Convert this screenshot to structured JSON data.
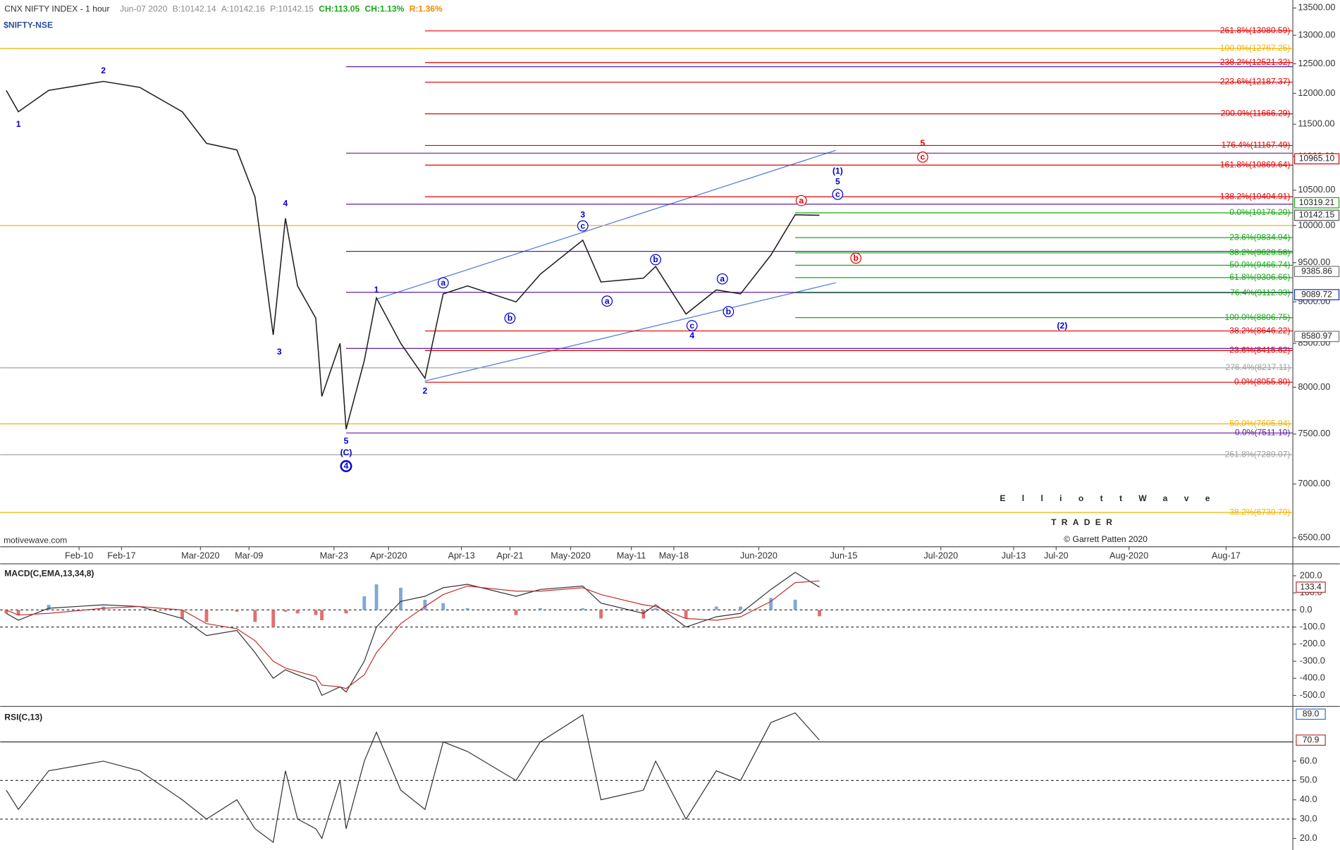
{
  "chart_data": [
    {
      "type": "line",
      "title": "CNX NIFTY INDEX - 1 hour",
      "subtitle": "$NIFTY-NSE",
      "header": [
        {
          "text": "Jun-07 2020",
          "color": "#8a8a8a"
        },
        {
          "text": "B:10142.14",
          "color": "#8a8a8a"
        },
        {
          "text": "A:10142.16",
          "color": "#8a8a8a"
        },
        {
          "text": "P:10142.15",
          "color": "#8a8a8a"
        },
        {
          "text": "CH:113.05",
          "color": "#18a818"
        },
        {
          "text": "CH:1.13%",
          "color": "#18a818"
        },
        {
          "text": "R:1.36%",
          "color": "#f08c00"
        }
      ],
      "log_scale": true,
      "color": "#222222",
      "xlim": [
        "2020-01-28",
        "2020-08-28"
      ],
      "ylim": [
        6420,
        13650
      ],
      "x": [
        "2020-01-29",
        "2020-01-31",
        "2020-02-05",
        "2020-02-14",
        "2020-02-20",
        "2020-02-27",
        "2020-03-02",
        "2020-03-07",
        "2020-03-10",
        "2020-03-13",
        "2020-03-15",
        "2020-03-17",
        "2020-03-20",
        "2020-03-21",
        "2020-03-24",
        "2020-03-25",
        "2020-03-28",
        "2020-03-30",
        "2020-04-03",
        "2020-04-07",
        "2020-04-10",
        "2020-04-14",
        "2020-04-22",
        "2020-04-26",
        "2020-05-03",
        "2020-05-06",
        "2020-05-13",
        "2020-05-15",
        "2020-05-20",
        "2020-05-25",
        "2020-05-29",
        "2020-06-03",
        "2020-06-07",
        "2020-06-11"
      ],
      "values": [
        12050,
        11700,
        12050,
        12200,
        12100,
        11700,
        11200,
        11100,
        10400,
        8600,
        10100,
        9200,
        8800,
        7900,
        8500,
        7550,
        8300,
        9050,
        8500,
        8100,
        9100,
        9200,
        9000,
        9350,
        9800,
        9250,
        9300,
        9450,
        8850,
        9150,
        9100,
        9600,
        10150,
        10142.15
      ],
      "xticks": [
        {
          "value": "2020-02-10",
          "label": "Feb-10"
        },
        {
          "value": "2020-02-17",
          "label": "Feb-17"
        },
        {
          "value": "2020-03-01",
          "label": "Mar-2020"
        },
        {
          "value": "2020-03-09",
          "label": "Mar-09"
        },
        {
          "value": "2020-03-23",
          "label": "Mar-23"
        },
        {
          "value": "2020-04-01",
          "label": "Apr-2020"
        },
        {
          "value": "2020-04-13",
          "label": "Apr-13"
        },
        {
          "value": "2020-04-21",
          "label": "Apr-21"
        },
        {
          "value": "2020-05-01",
          "label": "May-2020"
        },
        {
          "value": "2020-05-11",
          "label": "May-11"
        },
        {
          "value": "2020-05-18",
          "label": "May-18"
        },
        {
          "value": "2020-06-01",
          "label": "Jun-2020"
        },
        {
          "value": "2020-06-15",
          "label": "Jun-15"
        },
        {
          "value": "2020-07-01",
          "label": "Jul-2020"
        },
        {
          "value": "2020-07-13",
          "label": "Jul-13"
        },
        {
          "value": "2020-07-20",
          "label": "Jul-20"
        },
        {
          "value": "2020-08-01",
          "label": "Aug-2020"
        },
        {
          "value": "2020-08-17",
          "label": "Aug-17"
        }
      ],
      "yticks": [
        {
          "value": 13500,
          "label": "13500.00"
        },
        {
          "value": 13000,
          "label": "13000.00"
        },
        {
          "value": 12500,
          "label": "12500.00"
        },
        {
          "value": 12000,
          "label": "12000.00"
        },
        {
          "value": 11500,
          "label": "11500.00"
        },
        {
          "value": 11000,
          "label": "11000.00"
        },
        {
          "value": 10500,
          "label": "10500.00"
        },
        {
          "value": 10000,
          "label": "10000.00"
        },
        {
          "value": 9500,
          "label": "9500.00"
        },
        {
          "value": 9000,
          "label": "9000.00"
        },
        {
          "value": 8500,
          "label": "8500.00"
        },
        {
          "value": 8000,
          "label": "8000.00"
        },
        {
          "value": 7500,
          "label": "7500.00"
        },
        {
          "value": 7000,
          "label": "7000.00"
        },
        {
          "value": 6500,
          "label": "6500.00"
        }
      ],
      "levels": [
        {
          "label": "261.8%(13080.59)",
          "value": 13080.59,
          "color": "#e00000",
          "from": "2020-04-07"
        },
        {
          "label": "100.0%(12767.25)",
          "value": 12767.25,
          "color": "#f0b400",
          "from": "2020-01-28"
        },
        {
          "label": "238.2%(12521.32)",
          "value": 12521.32,
          "color": "#e00000",
          "from": "2020-04-07"
        },
        {
          "value": 12450,
          "color": "#6020a0",
          "from": "2020-03-25"
        },
        {
          "label": "223.6%(12187.37)",
          "value": 12187.37,
          "color": "#e00000",
          "from": "2020-04-07"
        },
        {
          "label": "200.0%(11666.29)",
          "value": 11666.29,
          "color": "#e00000",
          "from": "2020-04-07"
        },
        {
          "label": "176.4%(11167.49)",
          "value": 11167.49,
          "color": "#e00000",
          "from": "2020-04-07"
        },
        {
          "value": 11050,
          "color": "#6020a0",
          "from": "2020-03-25"
        },
        {
          "label": "161.8%(10869.64)",
          "value": 10869.64,
          "color": "#e00000",
          "from": "2020-04-07"
        },
        {
          "label": "138.2%(10404.91)",
          "value": 10404.91,
          "color": "#e00000",
          "from": "2020-04-07"
        },
        {
          "value": 10300,
          "color": "#6020a0",
          "from": "2020-03-25"
        },
        {
          "label": "0.0%(10176.20)",
          "value": 10176.2,
          "color": "#18a818",
          "from": "2020-06-07"
        },
        {
          "value": 10000,
          "color": "#f0b400",
          "from": "2020-01-28"
        },
        {
          "label": "23.6%(9834.94)",
          "value": 9834.94,
          "color": "#18a818",
          "from": "2020-06-07"
        },
        {
          "value": 9650,
          "color": "#6020a0",
          "from": "2020-03-25"
        },
        {
          "label": "38.2%(9629.58)",
          "value": 9629.58,
          "color": "#18a818",
          "from": "2020-06-07"
        },
        {
          "label": "50.0%(9466.74)",
          "value": 9466.74,
          "color": "#18a818",
          "from": "2020-06-07"
        },
        {
          "label": "61.8%(9306.66)",
          "value": 9306.66,
          "color": "#18a818",
          "from": "2020-06-07"
        },
        {
          "value": 9120,
          "color": "#6020a0",
          "from": "2020-03-25"
        },
        {
          "label": "76.4%(9112.33)",
          "value": 9112.33,
          "color": "#18a818",
          "from": "2020-06-07"
        },
        {
          "label": "100.0%(8806.75)",
          "value": 8806.75,
          "color": "#18a818",
          "from": "2020-06-07"
        },
        {
          "label": "38.2%(8646.22)",
          "value": 8646.22,
          "color": "#e00000",
          "from": "2020-04-07"
        },
        {
          "value": 8440,
          "color": "#6020a0",
          "from": "2020-03-25"
        },
        {
          "label": "23.6%(8415.62)",
          "value": 8415.62,
          "color": "#e00000",
          "from": "2020-04-07"
        },
        {
          "label": "276.4%(8217.11)",
          "value": 8217.11,
          "color": "#a0a0a0",
          "from": "2020-01-28"
        },
        {
          "label": "0.0%(8055.80)",
          "value": 8055.8,
          "color": "#e00000",
          "from": "2020-04-07"
        },
        {
          "label": "50.0%(7605.94)",
          "value": 7605.94,
          "color": "#f0b400",
          "from": "2020-01-28"
        },
        {
          "label": "0.0%(7511.10)",
          "value": 7511.1,
          "color": "#6020a0",
          "from": "2020-03-25"
        },
        {
          "label": "261.8%(7289.07)",
          "value": 7289.07,
          "color": "#a0a0a0",
          "from": "2020-01-28"
        },
        {
          "label": "38.2%(6730.79)",
          "value": 6730.79,
          "color": "#f0b400",
          "from": "2020-01-28"
        }
      ],
      "price_tags": [
        {
          "label": "10965.10",
          "value": 10965.1,
          "color": "#e00000"
        },
        {
          "label": "10319.21",
          "value": 10319.21,
          "color": "#18a818"
        },
        {
          "label": "10142.15",
          "value": 10142.15,
          "color": "#555555"
        },
        {
          "label": "9385.86",
          "value": 9385.86,
          "color": "#777777"
        },
        {
          "label": "9089.72",
          "value": 9089.72,
          "color": "#1030c0"
        },
        {
          "label": "8580.97",
          "value": 8580.97,
          "color": "#777777"
        }
      ],
      "annotations": [
        {
          "text": "1",
          "x": "2020-01-31",
          "y": 11500,
          "color": "#0000cc",
          "circle": false
        },
        {
          "text": "2",
          "x": "2020-02-14",
          "y": 12385,
          "color": "#0000cc",
          "circle": false
        },
        {
          "text": "3",
          "x": "2020-03-14",
          "y": 8400,
          "color": "#0000cc",
          "circle": false
        },
        {
          "text": "4",
          "x": "2020-03-15",
          "y": 10310,
          "color": "#0000cc",
          "circle": false
        },
        {
          "text": "5",
          "x": "2020-03-25",
          "y": 7430,
          "color": "#0000cc",
          "circle": false
        },
        {
          "text": "(C)",
          "x": "2020-03-25",
          "y": 7310,
          "color": "#0000cc",
          "circle": false
        },
        {
          "text": "4",
          "x": "2020-03-25",
          "y": 7175,
          "color": "#0000cc",
          "circle": true
        },
        {
          "text": "1",
          "x": "2020-03-30",
          "y": 9150,
          "color": "#0000cc",
          "circle": false
        },
        {
          "text": "2",
          "x": "2020-04-07",
          "y": 7960,
          "color": "#0000cc",
          "circle": false
        },
        {
          "text": "a",
          "x": "2020-04-10",
          "y": 9240,
          "color": "#0000cc",
          "circle": true
        },
        {
          "text": "b",
          "x": "2020-04-21",
          "y": 8800,
          "color": "#0000cc",
          "circle": true
        },
        {
          "text": "3",
          "x": "2020-05-03",
          "y": 10150,
          "color": "#0000cc",
          "circle": false
        },
        {
          "text": "c",
          "x": "2020-05-03",
          "y": 9995,
          "color": "#0000cc",
          "circle": true
        },
        {
          "text": "a",
          "x": "2020-05-07",
          "y": 9010,
          "color": "#0000cc",
          "circle": true
        },
        {
          "text": "b",
          "x": "2020-05-15",
          "y": 9540,
          "color": "#0000cc",
          "circle": true
        },
        {
          "text": "c",
          "x": "2020-05-21",
          "y": 8710,
          "color": "#0000cc",
          "circle": true
        },
        {
          "text": "4",
          "x": "2020-05-21",
          "y": 8590,
          "color": "#0000cc",
          "circle": false
        },
        {
          "text": "a",
          "x": "2020-05-26",
          "y": 9290,
          "color": "#0000cc",
          "circle": true
        },
        {
          "text": "b",
          "x": "2020-05-27",
          "y": 8880,
          "color": "#0000cc",
          "circle": true
        },
        {
          "text": "(1)",
          "x": "2020-06-14",
          "y": 10780,
          "color": "#0000cc",
          "circle": false
        },
        {
          "text": "5",
          "x": "2020-06-14",
          "y": 10625,
          "color": "#0000cc",
          "circle": false
        },
        {
          "text": "c",
          "x": "2020-06-14",
          "y": 10440,
          "color": "#0000cc",
          "circle": true
        },
        {
          "text": "(2)",
          "x": "2020-07-21",
          "y": 8710,
          "color": "#0000cc",
          "circle": false
        },
        {
          "text": "5",
          "x": "2020-06-28",
          "y": 11205,
          "color": "#e00000",
          "circle": false
        },
        {
          "text": "c",
          "x": "2020-06-28",
          "y": 10990,
          "color": "#e00000",
          "circle": true
        },
        {
          "text": "a",
          "x": "2020-06-08",
          "y": 10350,
          "color": "#e00000",
          "circle": true
        },
        {
          "text": "b",
          "x": "2020-06-17",
          "y": 9560,
          "color": "#e00000",
          "circle": true
        }
      ],
      "watermark": {
        "brand": "ElliottWave",
        "tagline": "TRADER",
        "credit": "© Garrett Patten 2020",
        "site": "motivewave.com"
      }
    },
    {
      "type": "macd",
      "title": "MACD(C,EMA,13,34,8)",
      "ylim": [
        -560,
        260
      ],
      "yticks": [
        {
          "value": 200,
          "label": "200.0"
        },
        {
          "value": 100,
          "label": "100.0"
        },
        {
          "value": 0,
          "label": "0.0"
        },
        {
          "value": -100,
          "label": "-100.0"
        },
        {
          "value": -200,
          "label": "-200.0"
        },
        {
          "value": -300,
          "label": "-300.0"
        },
        {
          "value": -400,
          "label": "-400.0"
        },
        {
          "value": -500,
          "label": "-500.0"
        }
      ],
      "reference_lines": [
        0,
        -100
      ],
      "series": [
        {
          "color": "#333333",
          "values": [
            -20,
            -60,
            10,
            30,
            20,
            -50,
            -150,
            -120,
            -250,
            -400,
            -350,
            -380,
            -420,
            -500,
            -450,
            -480,
            -300,
            -100,
            50,
            80,
            130,
            150,
            80,
            120,
            140,
            40,
            -20,
            30,
            -100,
            -40,
            -20,
            120,
            220,
            133.4
          ]
        },
        {
          "color": "#c03030",
          "values": [
            0,
            -30,
            -20,
            10,
            20,
            0,
            -80,
            -110,
            -180,
            -300,
            -340,
            -360,
            -390,
            -440,
            -450,
            -460,
            -380,
            -250,
            -80,
            20,
            90,
            140,
            110,
            110,
            130,
            90,
            30,
            20,
            -50,
            -60,
            -40,
            50,
            160,
            170
          ]
        }
      ],
      "histogram": [
        -20,
        -30,
        30,
        20,
        0,
        -50,
        -70,
        -10,
        -70,
        -100,
        -10,
        -20,
        -30,
        -60,
        0,
        -20,
        80,
        150,
        130,
        60,
        40,
        10,
        -30,
        10,
        10,
        -50,
        -50,
        10,
        -50,
        20,
        20,
        70,
        60,
        -37
      ],
      "value_tags": [
        {
          "label": "133.4",
          "value": 133.4,
          "color": "#c03030"
        }
      ]
    },
    {
      "type": "rsi",
      "title": "RSI(C,13)",
      "ylim": [
        14,
        87
      ],
      "yticks": [
        {
          "value": 60,
          "label": "60.0"
        },
        {
          "value": 50,
          "label": "50.0"
        },
        {
          "value": 40,
          "label": "40.0"
        },
        {
          "value": 30,
          "label": "30.0"
        },
        {
          "value": 20,
          "label": "20.0"
        }
      ],
      "reference_lines": [
        70,
        50,
        30
      ],
      "series": [
        {
          "color": "#333333",
          "values": [
            45,
            35,
            55,
            60,
            55,
            40,
            30,
            40,
            25,
            18,
            55,
            30,
            25,
            20,
            50,
            25,
            60,
            75,
            45,
            35,
            70,
            65,
            50,
            70,
            84,
            40,
            45,
            60,
            30,
            55,
            50,
            80,
            85,
            70.9
          ]
        }
      ],
      "value_tags": [
        {
          "label": "89.0",
          "value": 89,
          "color": "#3070d0"
        },
        {
          "label": "70.9",
          "value": 70.9,
          "color": "#c03030"
        }
      ]
    }
  ]
}
